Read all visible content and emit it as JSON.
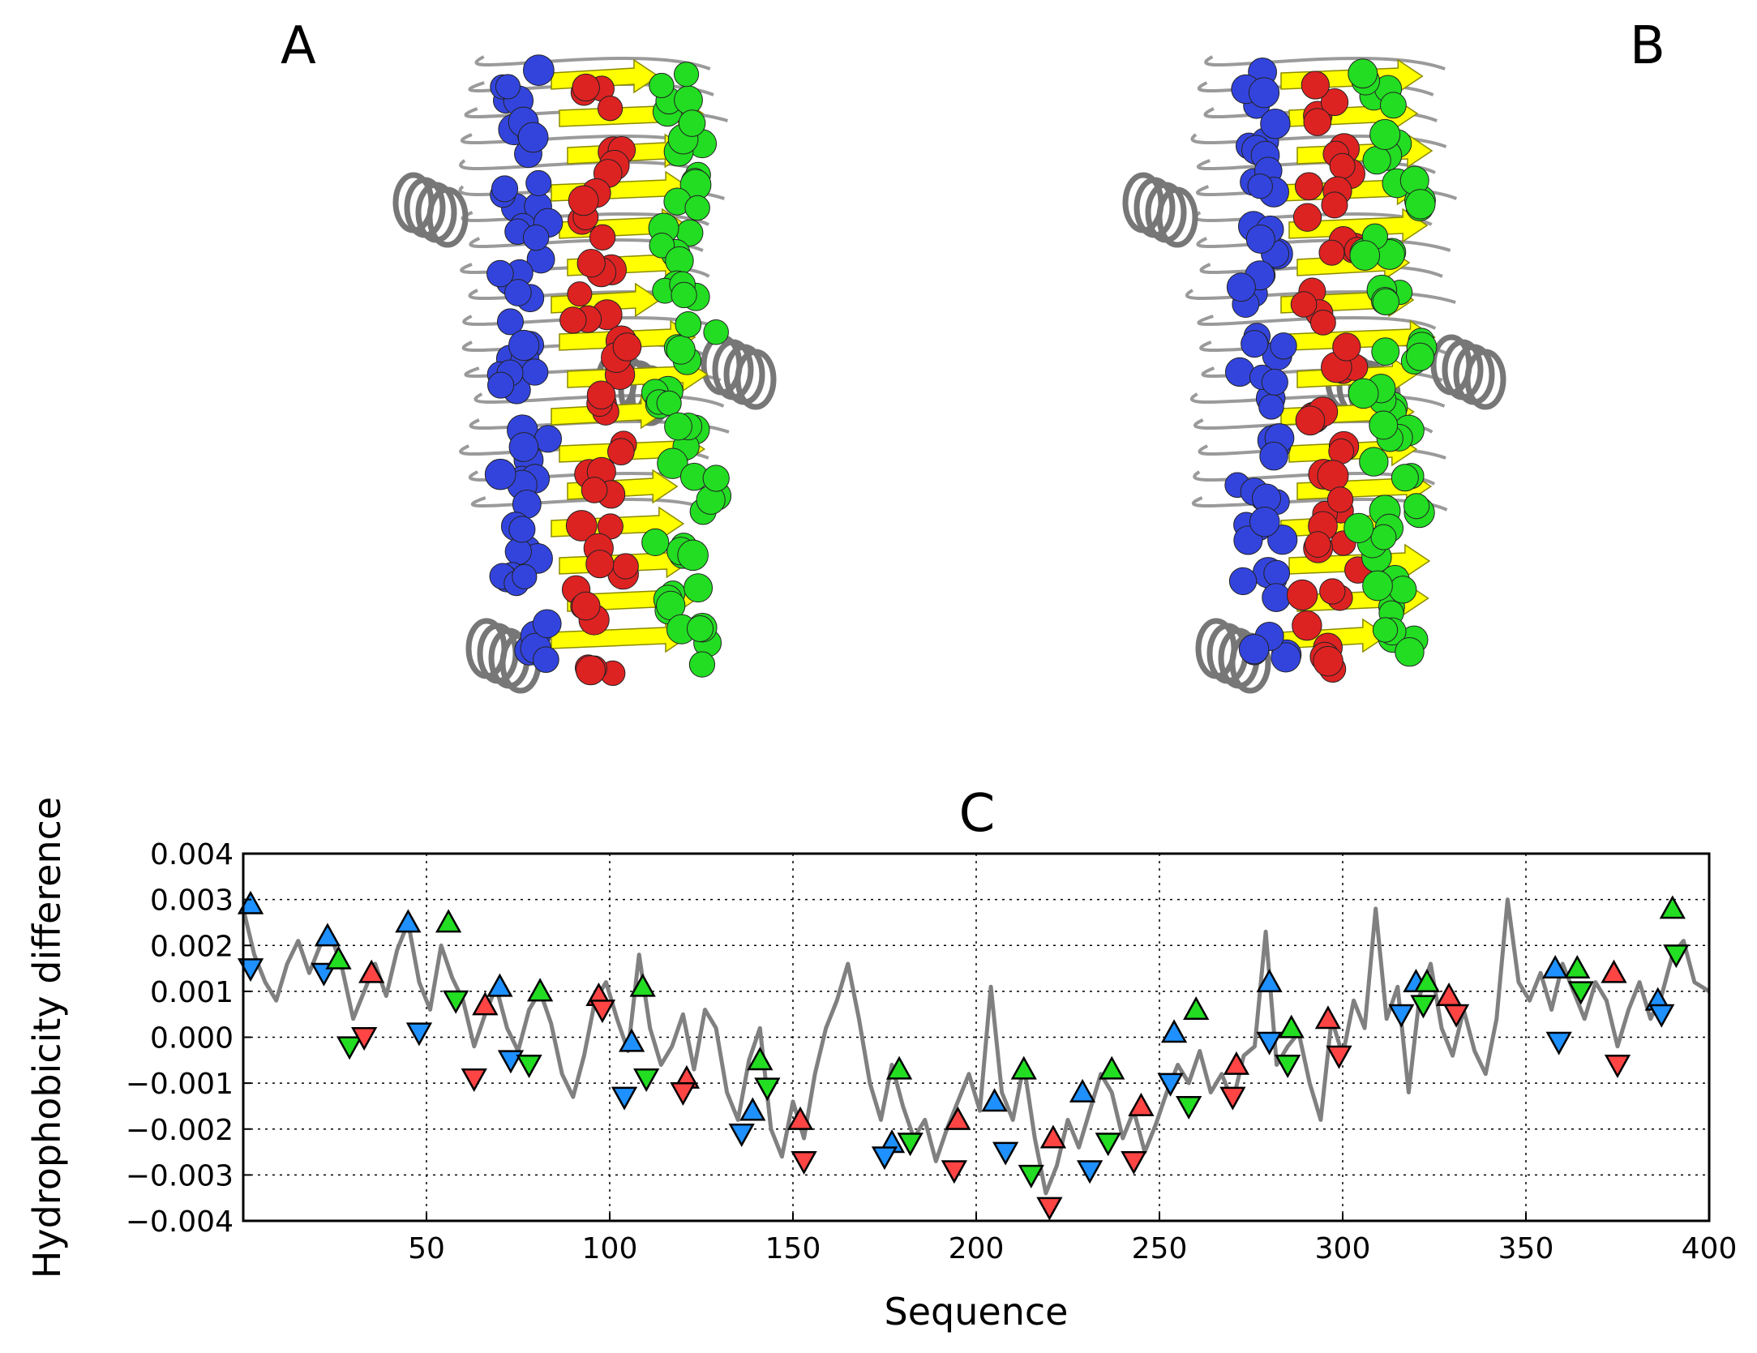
{
  "panels": {
    "a_label": "A",
    "b_label": "B",
    "c_label": "C"
  },
  "structure_colors": {
    "strand": "#ffff00",
    "coil": "#9a9a9a",
    "blue_residues": "#3344dd",
    "green_residues": "#22dd22",
    "red_residues": "#dd2222"
  },
  "chart_data": {
    "type": "line",
    "title": "C",
    "xlabel": "Sequence",
    "ylabel": "Hydrophobicity difference",
    "xlim": [
      0,
      400
    ],
    "ylim": [
      -0.004,
      0.004
    ],
    "grid": true,
    "xticks": [
      50,
      100,
      150,
      200,
      250,
      300,
      350,
      400
    ],
    "xtick_labels": [
      "50",
      "100",
      "150",
      "200",
      "250",
      "300",
      "350",
      "400"
    ],
    "yticks": [
      0.004,
      0.003,
      0.002,
      0.001,
      0.0,
      -0.001,
      -0.002,
      -0.003,
      -0.004
    ],
    "ytick_labels": [
      "0.004",
      "0.003",
      "0.002",
      "0.001",
      "0.000",
      "−0.001",
      "−0.002",
      "−0.003",
      "−0.004"
    ],
    "line_color": "#808080",
    "line": {
      "x": [
        0,
        3,
        6,
        9,
        12,
        15,
        18,
        21,
        24,
        27,
        30,
        33,
        36,
        39,
        42,
        45,
        48,
        51,
        54,
        57,
        60,
        63,
        66,
        69,
        72,
        75,
        78,
        81,
        84,
        87,
        90,
        93,
        96,
        99,
        102,
        105,
        108,
        111,
        114,
        117,
        120,
        123,
        126,
        129,
        132,
        135,
        138,
        141,
        144,
        147,
        150,
        153,
        156,
        159,
        162,
        165,
        168,
        171,
        174,
        177,
        180,
        183,
        186,
        189,
        192,
        195,
        198,
        201,
        204,
        207,
        210,
        213,
        216,
        219,
        222,
        225,
        228,
        231,
        234,
        237,
        240,
        243,
        246,
        249,
        252,
        255,
        258,
        261,
        264,
        267,
        270,
        273,
        276,
        279,
        282,
        285,
        288,
        291,
        294,
        297,
        300,
        303,
        306,
        309,
        312,
        315,
        318,
        321,
        324,
        327,
        330,
        333,
        336,
        339,
        342,
        345,
        348,
        351,
        354,
        357,
        360,
        363,
        366,
        369,
        372,
        375,
        378,
        381,
        384,
        387,
        390,
        393,
        396,
        400
      ],
      "y": [
        0.0028,
        0.0018,
        0.0012,
        0.0008,
        0.0016,
        0.0021,
        0.0014,
        0.002,
        0.0022,
        0.0015,
        0.0004,
        0.001,
        0.0016,
        0.0009,
        0.0019,
        0.0025,
        0.0012,
        0.0006,
        0.002,
        0.0013,
        0.0008,
        -0.0002,
        0.0005,
        0.0011,
        0.0002,
        -0.0003,
        0.0006,
        0.001,
        0.0003,
        -0.0008,
        -0.0013,
        -0.0004,
        0.0008,
        0.0012,
        0.0004,
        -0.0003,
        0.0018,
        0.0002,
        -0.0006,
        -0.0002,
        0.0005,
        -0.0007,
        0.0006,
        0.0002,
        -0.0012,
        -0.0018,
        -0.0005,
        0.0002,
        -0.002,
        -0.0026,
        -0.0014,
        -0.0022,
        -0.0008,
        0.0002,
        0.0008,
        0.0016,
        0.0004,
        -0.001,
        -0.0018,
        -0.0006,
        -0.0015,
        -0.0022,
        -0.0018,
        -0.0027,
        -0.002,
        -0.0014,
        -0.0008,
        -0.0016,
        0.0011,
        -0.0012,
        -0.0018,
        -0.0006,
        -0.0022,
        -0.0034,
        -0.0028,
        -0.0018,
        -0.0024,
        -0.0016,
        -0.0008,
        -0.0012,
        -0.0022,
        -0.0016,
        -0.0025,
        -0.0019,
        -0.0012,
        -0.0006,
        -0.001,
        -0.0003,
        -0.0012,
        -0.0008,
        -0.0014,
        -0.0004,
        -0.0002,
        0.0023,
        -0.0006,
        -0.0002,
        0.0001,
        -0.001,
        -0.0018,
        0.0004,
        -0.0004,
        0.0008,
        0.0002,
        0.0028,
        0.0004,
        0.0011,
        -0.0012,
        0.0009,
        0.0016,
        0.0002,
        -0.0004,
        0.0006,
        -0.0003,
        -0.0008,
        0.0004,
        0.003,
        0.0012,
        0.0008,
        0.0014,
        0.0006,
        0.0016,
        0.001,
        0.0004,
        0.0012,
        0.0008,
        -0.0002,
        0.0006,
        0.0012,
        0.0004,
        0.0009,
        0.0018,
        0.0021,
        0.0012,
        0.001
      ]
    },
    "marker_series": [
      {
        "color": "#1e90ff",
        "marker": "triangle-up",
        "x": [
          2,
          23,
          45,
          70,
          106,
          139,
          177,
          205,
          229,
          254,
          280,
          320,
          358,
          386
        ],
        "y": [
          0.0029,
          0.0022,
          0.0025,
          0.0011,
          -0.0001,
          -0.0016,
          -0.0023,
          -0.0014,
          -0.0012,
          0.0001,
          0.0012,
          0.0012,
          0.0015,
          0.0008
        ]
      },
      {
        "color": "#1e90ff",
        "marker": "triangle-down",
        "x": [
          2,
          22,
          48,
          73,
          104,
          136,
          175,
          208,
          231,
          253,
          280,
          316,
          359,
          387
        ],
        "y": [
          0.0015,
          0.0014,
          0.0001,
          -0.0005,
          -0.0013,
          -0.0021,
          -0.0026,
          -0.0025,
          -0.0029,
          -0.001,
          -0.0001,
          0.0005,
          -0.0001,
          0.0005
        ]
      },
      {
        "color": "#22dd22",
        "marker": "triangle-up",
        "x": [
          26,
          56,
          81,
          109,
          141,
          179,
          213,
          237,
          260,
          286,
          323,
          364,
          390
        ],
        "y": [
          0.0017,
          0.0025,
          0.001,
          0.0011,
          -0.0005,
          -0.0007,
          -0.0007,
          -0.0007,
          0.0006,
          0.0002,
          0.0012,
          0.0015,
          0.0028
        ]
      },
      {
        "color": "#22dd22",
        "marker": "triangle-down",
        "x": [
          29,
          58,
          78,
          110,
          143,
          182,
          215,
          236,
          258,
          285,
          322,
          365,
          391
        ],
        "y": [
          -0.0002,
          0.0008,
          -0.0006,
          -0.0009,
          -0.0011,
          -0.0023,
          -0.003,
          -0.0023,
          -0.0015,
          -0.0006,
          0.0007,
          0.001,
          0.0018
        ]
      },
      {
        "color": "#ff4444",
        "marker": "triangle-up",
        "x": [
          35,
          66,
          97,
          121,
          152,
          195,
          221,
          245,
          271,
          296,
          329,
          374
        ],
        "y": [
          0.0014,
          0.0007,
          0.0009,
          -0.0009,
          -0.0018,
          -0.0018,
          -0.0022,
          -0.0015,
          -0.0006,
          0.0004,
          0.0009,
          0.0014
        ]
      },
      {
        "color": "#ff4444",
        "marker": "triangle-down",
        "x": [
          33,
          63,
          98,
          120,
          153,
          194,
          220,
          243,
          270,
          299,
          331,
          375
        ],
        "y": [
          0.0,
          -0.0009,
          0.0006,
          -0.0012,
          -0.0027,
          -0.0029,
          -0.0037,
          -0.0027,
          -0.0013,
          -0.0004,
          0.0005,
          -0.0006
        ]
      }
    ]
  }
}
